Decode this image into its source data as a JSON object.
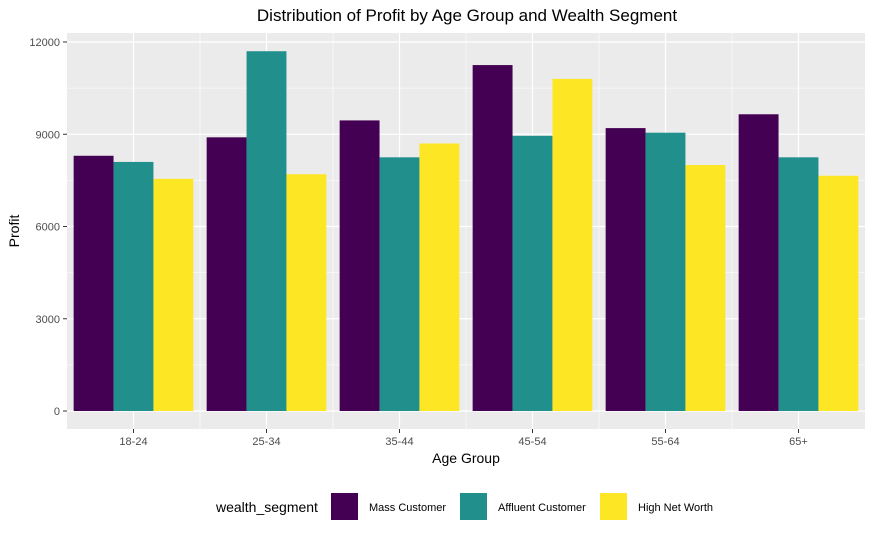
{
  "chart_data": {
    "type": "bar",
    "title": "Distribution of Profit by Age Group and Wealth Segment",
    "xlabel": "Age Group",
    "ylabel": "Profit",
    "categories": [
      "18-24",
      "25-34",
      "35-44",
      "45-54",
      "55-64",
      "65+"
    ],
    "series": [
      {
        "name": "Mass Customer",
        "color": "#440154",
        "values": [
          8300,
          8900,
          9450,
          11250,
          9200,
          9650
        ]
      },
      {
        "name": "Affluent Customer",
        "color": "#21908c",
        "values": [
          8100,
          11700,
          8250,
          8950,
          9050,
          8250
        ]
      },
      {
        "name": "High Net Worth",
        "color": "#fde725",
        "values": [
          7550,
          7700,
          8700,
          10800,
          8000,
          7650
        ]
      }
    ],
    "ylim": [
      0,
      12000
    ],
    "yticks": [
      0,
      3000,
      6000,
      9000,
      12000
    ],
    "grid": true,
    "panel_background": "#ebebeb",
    "legend": {
      "title": "wealth_segment",
      "position": "bottom"
    }
  }
}
